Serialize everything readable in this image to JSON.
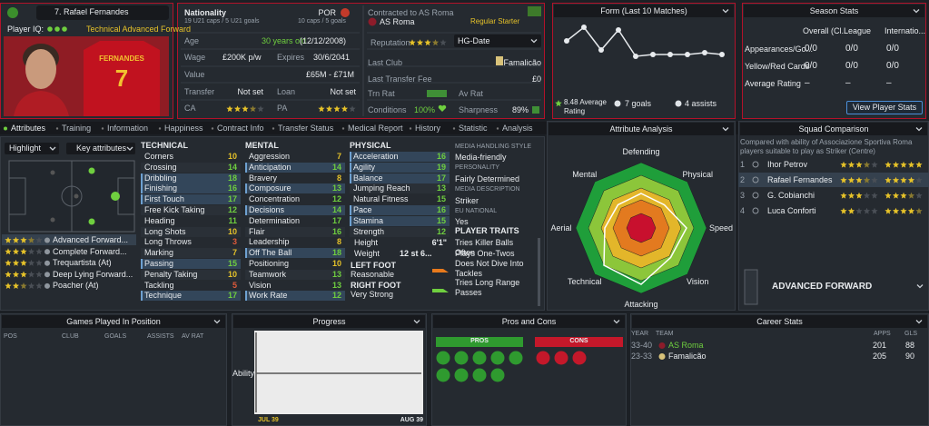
{
  "header": {
    "name": "7. Rafael Fernandes",
    "iq_label": "Player IQ:",
    "role": "Technical Advanced Forward",
    "shirt_name": "FERNANDES",
    "shirt_number": "7"
  },
  "info": {
    "nationality_label": "Nationality",
    "nation": "POR",
    "u21": "19 U21 caps / 5 U21 goals",
    "caps": "10 caps / 5 goals",
    "age_label": "Age",
    "age": "30 years old",
    "dob": "(12/12/2008)",
    "wage_label": "Wage",
    "wage": "£200K p/w",
    "expires_label": "Expires",
    "expires": "30/6/2041",
    "value_label": "Value",
    "value": "£65M - £71M",
    "transfer_label": "Transfer",
    "transfer": "Not set",
    "loan_label": "Loan",
    "loan": "Not set",
    "ca_label": "CA",
    "pa_label": "PA"
  },
  "club": {
    "contract": "Contracted to AS Roma",
    "club": "AS Roma",
    "status": "Regular Starter",
    "reputation_label": "Reputation",
    "hg_label": "HG-Date",
    "last_club_label": "Last Club",
    "last_club": "Famalicão",
    "fee_label": "Last Transfer Fee",
    "fee": "£0",
    "trn_label": "Trn Rat",
    "av_label": "Av Rat",
    "conditions_label": "Conditions",
    "conditions": "100%",
    "sharpness_label": "Sharpness",
    "sharpness": "89%"
  },
  "form": {
    "title": "Form (Last 10 Matches)",
    "avg": "8.48 Average Rating",
    "goals": "7 goals",
    "assists": "4 assists"
  },
  "season": {
    "title": "Season Stats",
    "columns": [
      "Overall (Cl...",
      "League",
      "Internatio..."
    ],
    "rows": [
      {
        "label": "Appearances/Go...",
        "cells": [
          "0/0",
          "0/0",
          "0/0"
        ]
      },
      {
        "label": "Yellow/Red Cards",
        "cells": [
          "0/0",
          "0/0",
          "0/0"
        ]
      },
      {
        "label": "Average Rating",
        "cells": [
          "–",
          "–",
          "–"
        ]
      }
    ],
    "button": "View Player Stats"
  },
  "tabs": [
    "Attributes",
    "Training",
    "Information",
    "Happiness",
    "Contract Info",
    "Transfer Status",
    "Medical Report",
    "History",
    "Statistic",
    "Analysis"
  ],
  "overview": {
    "highlight": "Highlight",
    "key": "Key attributes",
    "roles": [
      "Advanced Forward...",
      "Complete Forward...",
      "Trequartista (At)",
      "Deep Lying Forward...",
      "Poacher (At)"
    ]
  },
  "technical": {
    "title": "TECHNICAL",
    "attributes": [
      {
        "name": "Corners",
        "value": 10
      },
      {
        "name": "Crossing",
        "value": 14
      },
      {
        "name": "Dribbling",
        "value": 18
      },
      {
        "name": "Finishing",
        "value": 16
      },
      {
        "name": "First Touch",
        "value": 17
      },
      {
        "name": "Free Kick Taking",
        "value": 12
      },
      {
        "name": "Heading",
        "value": 11
      },
      {
        "name": "Long Shots",
        "value": 10
      },
      {
        "name": "Long Throws",
        "value": 3
      },
      {
        "name": "Marking",
        "value": 7
      },
      {
        "name": "Passing",
        "value": 15
      },
      {
        "name": "Penalty Taking",
        "value": 10
      },
      {
        "name": "Tackling",
        "value": 5
      },
      {
        "name": "Technique",
        "value": 17
      }
    ]
  },
  "mental": {
    "title": "MENTAL",
    "attributes": [
      {
        "name": "Aggression",
        "value": 7
      },
      {
        "name": "Anticipation",
        "value": 14
      },
      {
        "name": "Bravery",
        "value": 8
      },
      {
        "name": "Composure",
        "value": 13
      },
      {
        "name": "Concentration",
        "value": 12
      },
      {
        "name": "Decisions",
        "value": 14
      },
      {
        "name": "Determination",
        "value": 17
      },
      {
        "name": "Flair",
        "value": 16
      },
      {
        "name": "Leadership",
        "value": 8
      },
      {
        "name": "Off The Ball",
        "value": 18
      },
      {
        "name": "Positioning",
        "value": 10
      },
      {
        "name": "Teamwork",
        "value": 13
      },
      {
        "name": "Vision",
        "value": 13
      },
      {
        "name": "Work Rate",
        "value": 12
      }
    ]
  },
  "physical": {
    "title": "PHYSICAL",
    "attributes": [
      {
        "name": "Acceleration",
        "value": 16
      },
      {
        "name": "Agility",
        "value": 19
      },
      {
        "name": "Balance",
        "value": 17
      },
      {
        "name": "Jumping Reach",
        "value": 13
      },
      {
        "name": "Natural Fitness",
        "value": 15
      },
      {
        "name": "Pace",
        "value": 16
      },
      {
        "name": "Stamina",
        "value": 15
      },
      {
        "name": "Strength",
        "value": 12
      }
    ],
    "height_label": "Height",
    "height": "6'1\"",
    "weight_label": "Weight",
    "weight": "12 st 6...",
    "left_foot_label": "LEFT FOOT",
    "left_foot": "Reasonable",
    "right_foot_label": "RIGHT FOOT",
    "right_foot": "Very Strong"
  },
  "media": {
    "style_label": "MEDIA HANDLING STYLE",
    "style": "Media-friendly",
    "personality_label": "PERSONALITY",
    "personality": "Fairly Determined",
    "description_label": "MEDIA DESCRIPTION",
    "description": "Striker",
    "eu_label": "EU NATIONAL",
    "eu": "Yes",
    "traits_label": "PLAYER TRAITS",
    "traits": [
      "Tries Killer Balls Often",
      "Plays One-Twos",
      "Does Not Dive Into Tackles",
      "Tries Long Range Passes"
    ]
  },
  "analysis": {
    "title": "Attribute Analysis",
    "axes": [
      "Defending",
      "Physical",
      "Speed",
      "Vision",
      "Attacking",
      "Technical",
      "Aerial",
      "Mental"
    ]
  },
  "squad": {
    "title": "Squad Comparison",
    "description": "Compared with ability of Associazione Sportiva Roma players suitable to play as Striker (Centre)",
    "players": [
      {
        "rank": 1,
        "name": "Ihor Petrov"
      },
      {
        "rank": 2,
        "name": "Rafael Fernandes"
      },
      {
        "rank": 3,
        "name": "G. Cobianchi"
      },
      {
        "rank": 4,
        "name": "Luca Conforti"
      }
    ],
    "role": "ADVANCED FORWARD"
  },
  "games": {
    "title": "Games Played In Position",
    "columns": [
      "POS",
      "CLUB",
      "GOALS",
      "ASSISTS",
      "AV RAT"
    ]
  },
  "progress": {
    "title": "Progress",
    "axis_label": "Ability",
    "start": "JUL 39",
    "end": "AUG 39"
  },
  "pros_cons": {
    "title": "Pros and Cons",
    "pros": "PROS",
    "cons": "CONS"
  },
  "career": {
    "title": "Career Stats",
    "columns": [
      "YEAR",
      "TEAM",
      "APPS",
      "GLS"
    ],
    "rows": [
      [
        "33-40",
        "AS Roma",
        201,
        88
      ],
      [
        "23-33",
        "Famalicão",
        205,
        90
      ]
    ]
  }
}
